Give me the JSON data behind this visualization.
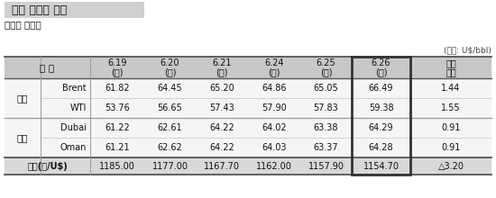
{
  "title": "국제 원유가 추이",
  "subtitle": "《일일 가격》",
  "unit_label": "(단위: U$/bbl)",
  "date_cols": [
    [
      "6.19",
      "(수)"
    ],
    [
      "6.20",
      "(목)"
    ],
    [
      "6.21",
      "(금)"
    ],
    [
      "6.24",
      "(월)"
    ],
    [
      "6.25",
      "(화)"
    ],
    [
      "6.26",
      "(수)"
    ],
    [
      "전일",
      "대비"
    ]
  ],
  "categories": [
    {
      "group": "선물",
      "name": "Brent",
      "values": [
        "61.82",
        "64.45",
        "65.20",
        "64.86",
        "65.05",
        "66.49",
        "1.44"
      ]
    },
    {
      "group": "선물",
      "name": "WTI",
      "values": [
        "53.76",
        "56.65",
        "57.43",
        "57.90",
        "57.83",
        "59.38",
        "1.55"
      ]
    },
    {
      "group": "현물",
      "name": "Dubai",
      "values": [
        "61.22",
        "62.61",
        "64.22",
        "64.02",
        "63.38",
        "64.29",
        "0.91"
      ]
    },
    {
      "group": "현물",
      "name": "Oman",
      "values": [
        "61.21",
        "62.62",
        "64.22",
        "64.03",
        "63.37",
        "64.28",
        "0.91"
      ]
    }
  ],
  "footer": [
    "환율(원/U$)",
    "1185.00",
    "1177.00",
    "1167.70",
    "1162.00",
    "1157.90",
    "1154.70",
    "△3.20"
  ],
  "title_bg": "#d0d0d0",
  "title_color": "#111111",
  "header_bg": "#c8c8c8",
  "row_bg": "#f7f7f7",
  "footer_bg": "#d8d8d8",
  "border_dark": "#555555",
  "border_mid": "#999999",
  "border_light": "#cccccc",
  "highlight_border": "#333333",
  "text_color": "#111111"
}
